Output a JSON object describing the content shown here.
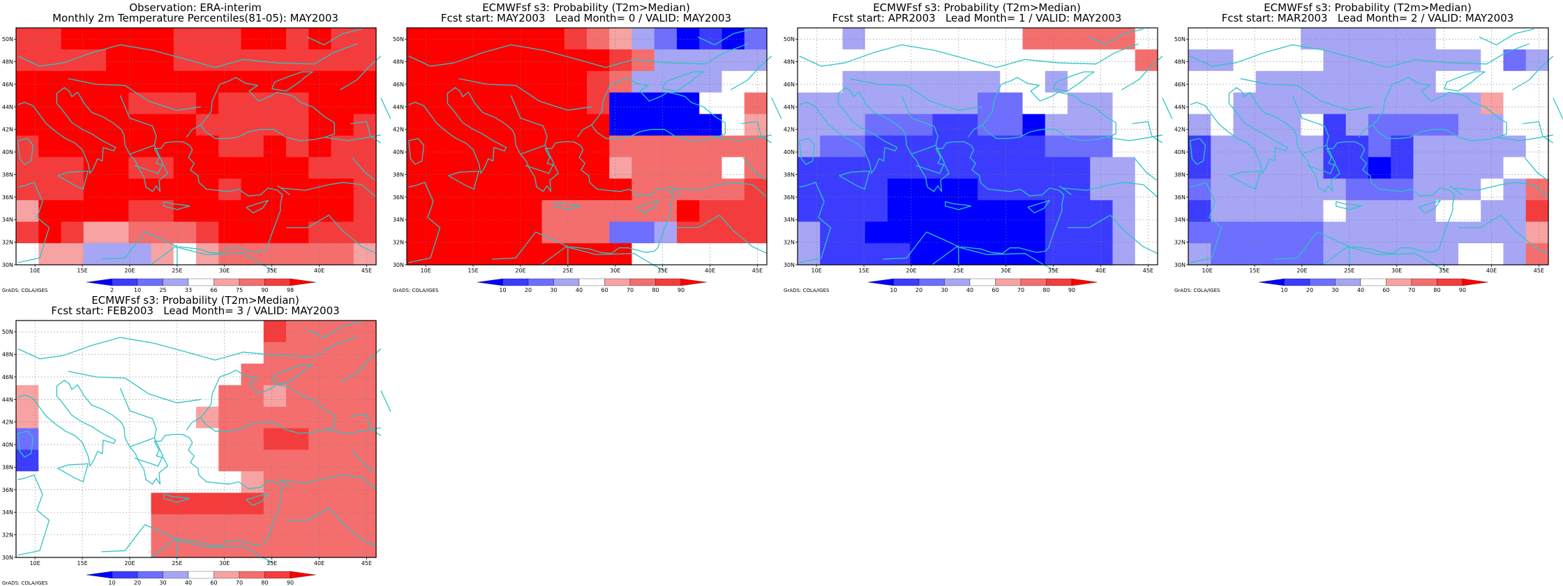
{
  "colors": {
    "coast": "#2ec4c4",
    "grid": "#7a7a7a",
    "frame": "#000000",
    "palette": [
      "#0000ff",
      "#3c3cff",
      "#6e6eff",
      "#a6a6f5",
      "#ffffff",
      "#f7a3a3",
      "#f56e6e",
      "#f53c3c",
      "#ff0000"
    ]
  },
  "axes": {
    "lon_range": [
      8,
      46
    ],
    "lat_range": [
      30,
      51
    ],
    "lon_ticks": [
      "10E",
      "15E",
      "20E",
      "25E",
      "30E",
      "35E",
      "40E",
      "45E"
    ],
    "lat_ticks": [
      "30N",
      "32N",
      "34N",
      "36N",
      "38N",
      "40N",
      "42N",
      "44N",
      "46N",
      "48N",
      "50N"
    ]
  },
  "credit": "GrADS: COLA/IGES",
  "panels": [
    {
      "title1": "Observation: ERA-interim",
      "title2": "Monthly 2m Temperature Percentiles(81-05): MAY2003",
      "colorbar_labels": [
        "2",
        "10",
        "25",
        "33",
        "66",
        "75",
        "90",
        "98"
      ],
      "grid": [
        "7788888777887877",
        "7777888777777777",
        "8888888888888888",
        "8888877787777888",
        "8888888877777887",
        "7888888887787877",
        "7778877888888777",
        "7778888887888887",
        "5888877888888887",
        "7875566678888777",
        "4553335456666665"
      ]
    },
    {
      "title1": "ECMWFsf s3: Probability (T2m>Median)",
      "title2": "Fcst start: MAY2003   Lead Month= 0 / VALID: MAY2003",
      "colorbar_labels": [
        "10",
        "20",
        "30",
        "40",
        "60",
        "70",
        "80",
        "90"
      ],
      "grid": [
        "8888888765320102",
        "8888888887633333",
        "8888888876333344",
        "8888888870000446",
        "8888888880000045",
        "8888888886666666",
        "8888888885666646",
        "8888888888666667",
        "8888886666668777",
        "8888886662237777",
        "8888888888444444"
      ]
    },
    {
      "title1": "ECMWFsf s3: Probability (T2m>Median)",
      "title2": "Fcst start: APR2003   Lead Month= 1 / VALID: MAY2003",
      "colorbar_labels": [
        "10",
        "20",
        "30",
        "40",
        "60",
        "70",
        "80",
        "90"
      ],
      "grid": [
        "4434444444666664",
        "4444444444444446",
        "4433333334434444",
        "3333333322443344",
        "3332221122033344",
        "3221111111122244",
        "1111111111111334",
        "1111000011111334",
        "1111000000011134",
        "3110000000011134",
        "3111100000011134"
      ]
    },
    {
      "title1": "ECMWFsf s3: Probability (T2m>Median)",
      "title2": "Fcst start: MAR2003   Lead Month= 2 / VALID: MAY2003",
      "colorbar_labels": [
        "10",
        "20",
        "30",
        "40",
        "60",
        "70",
        "80",
        "90"
      ],
      "grid": [
        "4444433333344444",
        "3344443333333423",
        "4443333333344444",
        "4433333333333544",
        "3433341322223344",
        "1333331121333334",
        "1333331101333344",
        "2333333222333436",
        "1333334333344337",
        "2222223333333335",
        "3222223333334436"
      ]
    },
    {
      "title1": "ECMWFsf s3: Probability (T2m>Median)",
      "title2": "Fcst start: FEB2003   Lead Month= 3 / VALID: MAY2003",
      "colorbar_labels": [
        "10",
        "20",
        "30",
        "40",
        "60",
        "70",
        "80",
        "90"
      ],
      "grid": [
        "4444444444476666",
        "4444444444466666",
        "4444444444666666",
        "5444444446656666",
        "5444444456666666",
        "2444444446677666",
        "1444444446666666",
        "4444444444566666",
        "4444447777766666",
        "4444446666666666",
        "4444446666666666"
      ]
    }
  ]
}
